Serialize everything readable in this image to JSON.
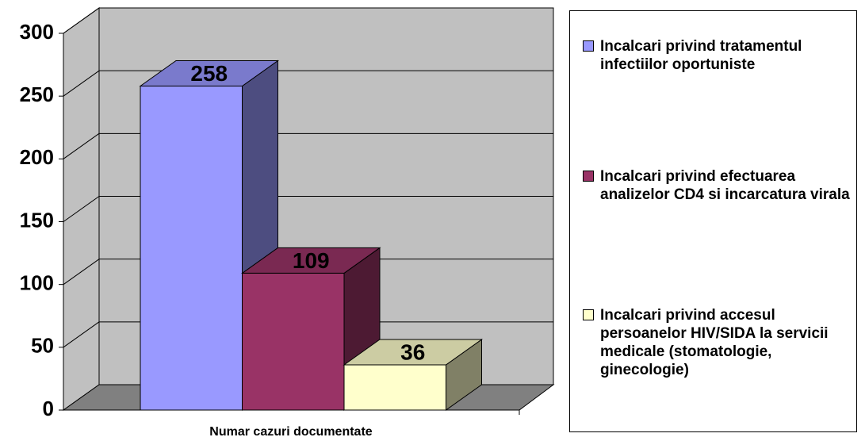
{
  "chart_data": {
    "type": "bar3d",
    "categories": [
      "Numar cazuri documentate"
    ],
    "series": [
      {
        "name": "Incalcari privind tratamentul infectiilor oportuniste",
        "color": "#9999ff",
        "values": [
          258
        ]
      },
      {
        "name": "Incalcari privind efectuarea analizelor CD4 si incarcatura virala",
        "color": "#993366",
        "values": [
          109
        ]
      },
      {
        "name": "Incalcari privind accesul persoanelor HIV/SIDA la servicii medicale (stomatologie, ginecologie)",
        "color": "#ffffcc",
        "values": [
          36
        ]
      }
    ],
    "ylim": [
      0,
      300
    ],
    "yticks": [
      0,
      50,
      100,
      150,
      200,
      250,
      300
    ],
    "grid": true,
    "legend": "right"
  }
}
